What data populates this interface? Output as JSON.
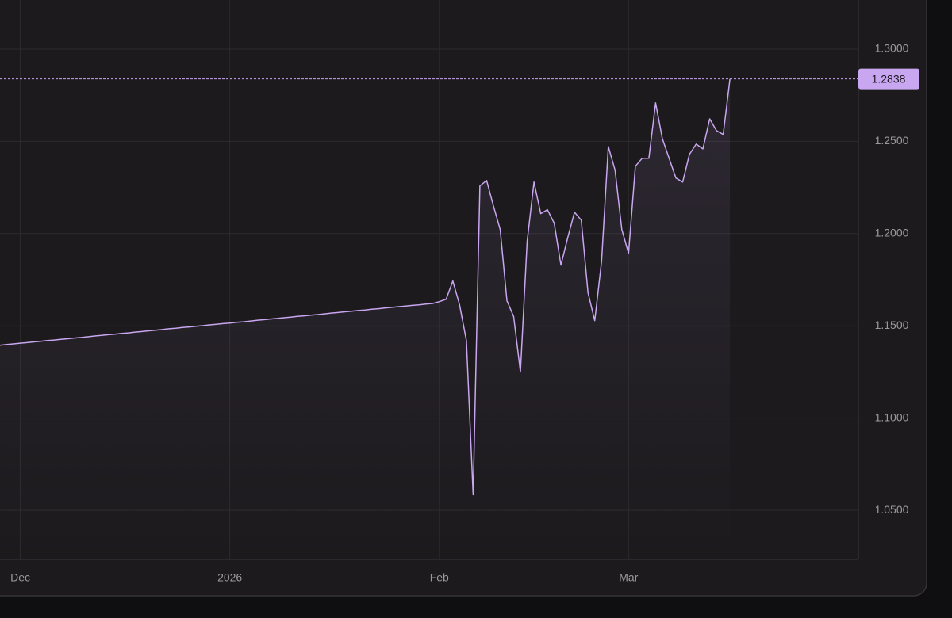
{
  "chart_data": {
    "type": "line",
    "values": [
      1.1395,
      1.1399,
      1.1402,
      1.1406,
      1.1409,
      1.1413,
      1.1416,
      1.142,
      1.1423,
      1.1427,
      1.143,
      1.1434,
      1.1437,
      1.1441,
      1.1445,
      1.1448,
      1.1452,
      1.1455,
      1.1459,
      1.1462,
      1.1466,
      1.1469,
      1.1473,
      1.1476,
      1.148,
      1.1484,
      1.1487,
      1.1491,
      1.1494,
      1.1498,
      1.1501,
      1.1505,
      1.1508,
      1.1512,
      1.1515,
      1.1519,
      1.1522,
      1.1526,
      1.153,
      1.1533,
      1.1537,
      1.154,
      1.1544,
      1.1547,
      1.1551,
      1.1554,
      1.1558,
      1.1561,
      1.1565,
      1.1569,
      1.1572,
      1.1576,
      1.1579,
      1.1583,
      1.1586,
      1.159,
      1.1593,
      1.1597,
      1.16,
      1.1604,
      1.1607,
      1.1611,
      1.1614,
      1.1618,
      1.1621,
      1.1631,
      1.1644,
      1.1743,
      1.1614,
      1.1421,
      1.0584,
      1.2258,
      1.2288,
      1.2151,
      1.2022,
      1.1636,
      1.155,
      1.125,
      1.1958,
      1.2279,
      1.2108,
      1.2129,
      1.2056,
      1.1829,
      1.1979,
      1.2116,
      1.2073,
      1.1679,
      1.1528,
      1.185,
      1.2472,
      1.2344,
      1.2022,
      1.1893,
      1.2365,
      1.2408,
      1.2408,
      1.2708,
      1.2515,
      1.2408,
      1.2301,
      1.2279,
      1.2429,
      1.2485,
      1.2459,
      1.2622,
      1.2558,
      1.2537,
      1.2838
    ],
    "color": "#c9a6f0",
    "xlim": [
      0,
      127
    ],
    "xticks": [
      {
        "value": 3,
        "label": "Dec"
      },
      {
        "value": 34,
        "label": "2026"
      },
      {
        "value": 65,
        "label": "Feb"
      },
      {
        "value": 93,
        "label": "Mar"
      }
    ],
    "ylim": [
      1.0234,
      1.3266
    ],
    "yticks": [
      {
        "value": 1.05,
        "label": "1.0500"
      },
      {
        "value": 1.1,
        "label": "1.1000"
      },
      {
        "value": 1.15,
        "label": "1.1500"
      },
      {
        "value": 1.2,
        "label": "1.2000"
      },
      {
        "value": 1.25,
        "label": "1.2500"
      },
      {
        "value": 1.3,
        "label": "1.3000"
      }
    ],
    "grid": true
  }
}
